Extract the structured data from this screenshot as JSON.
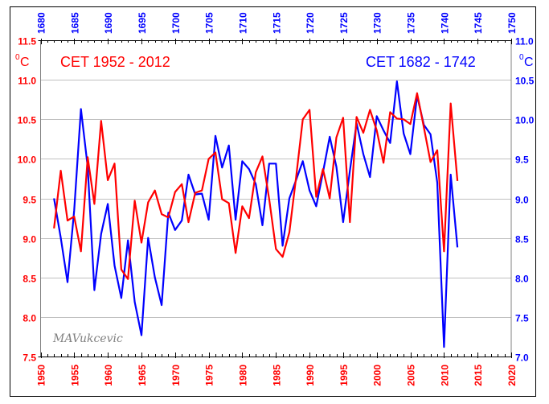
{
  "chart_data": {
    "type": "line",
    "title": "",
    "watermark": "MAVukcevic",
    "colors": {
      "series_recent": "#ff0000",
      "series_historic": "#0000ff",
      "grid": "#c0c0c0",
      "axis": "#808080"
    },
    "x_bottom": {
      "label": "",
      "range": [
        1950,
        2020
      ],
      "ticks": [
        "1950",
        "1955",
        "1960",
        "1965",
        "1970",
        "1975",
        "1980",
        "1985",
        "1990",
        "1995",
        "2000",
        "2005",
        "2010",
        "2015",
        "2020"
      ],
      "color": "#ff0000"
    },
    "x_top": {
      "label": "",
      "range": [
        1680,
        1750
      ],
      "ticks": [
        "1680",
        "1685",
        "1690",
        "1695",
        "1700",
        "1705",
        "1710",
        "1715",
        "1720",
        "1725",
        "1730",
        "1735",
        "1740",
        "1745",
        "1750"
      ],
      "color": "#0000ff"
    },
    "y_left": {
      "unit_sup": "0",
      "unit": "C",
      "range": [
        7.5,
        11.5
      ],
      "ticks": [
        "11.5",
        "11.0",
        "10.5",
        "10.0",
        "9.5",
        "9.0",
        "8.5",
        "8.0",
        "7.5"
      ],
      "color": "#ff0000"
    },
    "y_right": {
      "unit_sup": "0",
      "unit": "C",
      "range": [
        7.0,
        11.0
      ],
      "ticks": [
        "11.0",
        "10.5",
        "10.0",
        "9.5",
        "9.0",
        "8.5",
        "8.0",
        "7.5",
        "7.0"
      ],
      "color": "#0000ff"
    },
    "grid": true,
    "series": [
      {
        "name": "CET 1952 - 2012",
        "axis": "bottom-left",
        "legend_position": "top-left",
        "x": [
          1952,
          1953,
          1954,
          1955,
          1956,
          1957,
          1958,
          1959,
          1960,
          1961,
          1962,
          1963,
          1964,
          1965,
          1966,
          1967,
          1968,
          1969,
          1970,
          1971,
          1972,
          1973,
          1974,
          1975,
          1976,
          1977,
          1978,
          1979,
          1980,
          1981,
          1982,
          1983,
          1984,
          1985,
          1986,
          1987,
          1988,
          1989,
          1990,
          1991,
          1992,
          1993,
          1994,
          1995,
          1996,
          1997,
          1998,
          1999,
          2000,
          2001,
          2002,
          2003,
          2004,
          2005,
          2006,
          2007,
          2008,
          2009,
          2010,
          2011,
          2012
        ],
        "y": [
          9.12,
          9.85,
          9.22,
          9.27,
          8.83,
          10.02,
          9.43,
          10.48,
          9.73,
          9.94,
          8.6,
          8.48,
          9.47,
          8.94,
          9.45,
          9.6,
          9.3,
          9.26,
          9.58,
          9.68,
          9.2,
          9.57,
          9.6,
          10.0,
          10.08,
          9.49,
          9.44,
          8.81,
          9.4,
          9.25,
          9.83,
          10.03,
          9.49,
          8.86,
          8.76,
          9.07,
          9.76,
          10.5,
          10.62,
          9.52,
          9.87,
          9.5,
          10.27,
          10.52,
          9.2,
          10.53,
          10.33,
          10.62,
          10.36,
          9.95,
          10.59,
          10.51,
          10.5,
          10.44,
          10.83,
          10.4,
          9.96,
          10.11,
          8.83,
          10.7,
          9.72
        ]
      },
      {
        "name": "CET 1682 - 1742",
        "axis": "top-right",
        "legend_position": "top-right",
        "x": [
          1682,
          1683,
          1684,
          1685,
          1686,
          1687,
          1688,
          1689,
          1690,
          1691,
          1692,
          1693,
          1694,
          1695,
          1696,
          1697,
          1698,
          1699,
          1700,
          1701,
          1702,
          1703,
          1704,
          1705,
          1706,
          1707,
          1708,
          1709,
          1710,
          1711,
          1712,
          1713,
          1714,
          1715,
          1716,
          1717,
          1718,
          1719,
          1720,
          1721,
          1722,
          1723,
          1724,
          1725,
          1726,
          1727,
          1728,
          1729,
          1730,
          1731,
          1732,
          1733,
          1734,
          1735,
          1736,
          1737,
          1738,
          1739,
          1740,
          1741,
          1742
        ],
        "y": [
          9.0,
          8.5,
          7.94,
          8.85,
          10.13,
          9.4,
          7.84,
          8.55,
          8.93,
          8.15,
          7.74,
          8.47,
          7.69,
          7.27,
          8.5,
          8.0,
          7.65,
          8.82,
          8.6,
          8.72,
          9.3,
          9.05,
          9.06,
          8.73,
          9.79,
          9.39,
          9.67,
          8.73,
          9.47,
          9.37,
          9.18,
          8.66,
          9.44,
          9.44,
          8.4,
          9.0,
          9.23,
          9.47,
          9.1,
          8.9,
          9.33,
          9.78,
          9.4,
          8.7,
          9.35,
          9.95,
          9.56,
          9.27,
          10.04,
          9.86,
          9.7,
          10.48,
          9.82,
          9.56,
          10.3,
          9.93,
          9.81,
          9.2,
          7.12,
          9.3,
          8.38
        ]
      }
    ]
  }
}
